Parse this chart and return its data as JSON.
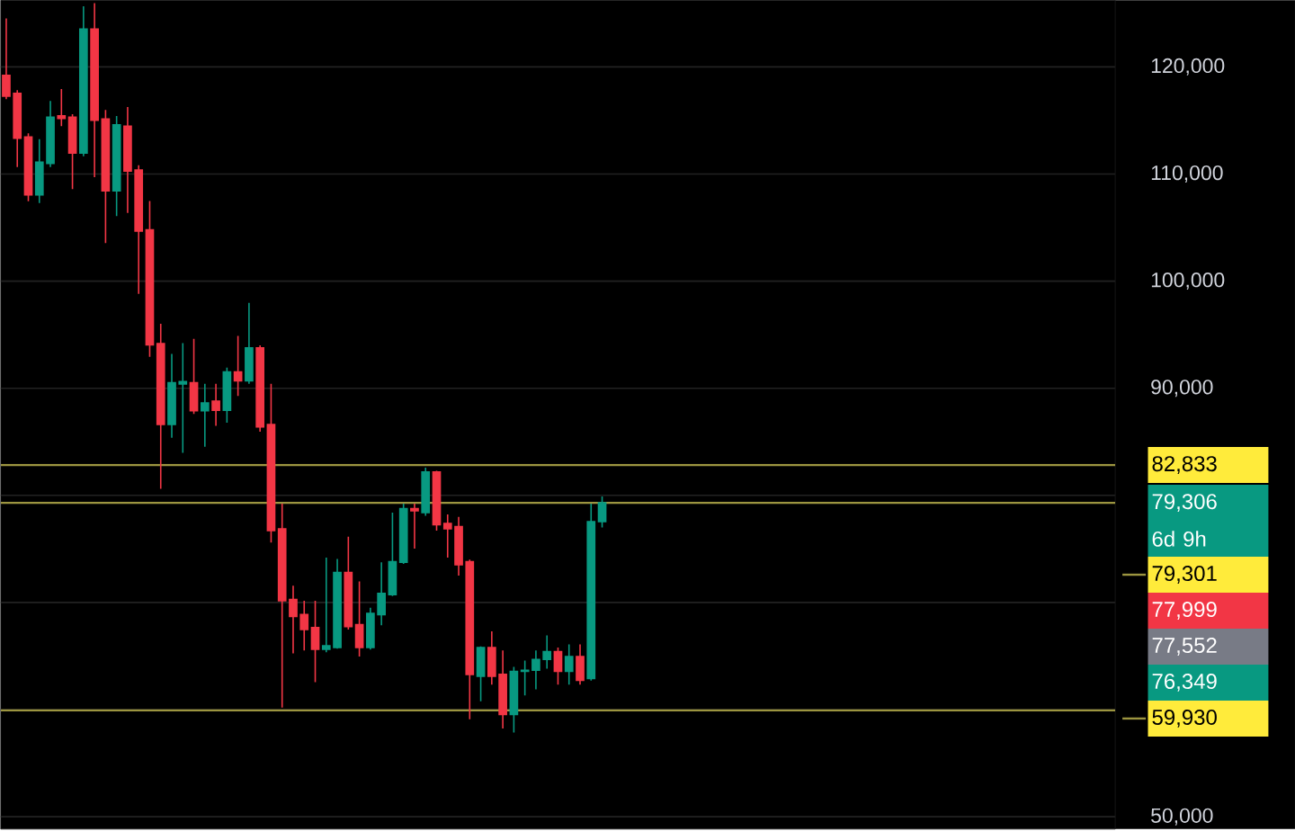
{
  "chart_data": {
    "type": "candlestick",
    "categories": [
      null,
      null,
      null,
      null,
      null,
      null,
      null,
      null,
      null,
      null,
      null,
      null,
      null,
      null,
      null,
      null,
      null,
      null,
      null,
      null,
      null,
      null,
      null,
      null,
      null,
      null,
      null,
      null,
      null,
      null,
      null,
      null,
      null,
      null,
      null,
      null,
      null,
      null,
      null,
      null,
      null,
      null,
      null,
      null,
      null,
      null,
      null,
      null,
      null,
      null,
      null,
      null,
      null,
      null,
      null,
      null,
      null,
      null,
      null,
      null,
      null,
      null,
      null,
      null,
      null,
      null,
      null,
      null,
      null,
      null,
      null,
      null,
      null,
      null,
      null,
      null,
      null,
      null,
      null,
      null,
      null,
      null,
      null,
      null,
      null,
      null,
      null,
      null,
      null,
      null,
      null,
      null,
      null,
      null,
      null,
      null,
      null,
      null,
      null,
      null,
      null
    ],
    "ohlc": [
      [
        119210,
        124531,
        116980,
        117265
      ],
      [
        117530,
        117819,
        110650,
        113340
      ],
      [
        113456,
        113800,
        107460,
        108040
      ],
      [
        108040,
        113240,
        107300,
        111107
      ],
      [
        110990,
        116810,
        110650,
        115300
      ],
      [
        115420,
        117930,
        114460,
        115190
      ],
      [
        115300,
        115590,
        108590,
        111950
      ],
      [
        111950,
        125650,
        111660,
        123520
      ],
      [
        123520,
        125950,
        109710,
        115020
      ],
      [
        115130,
        115970,
        103550,
        108420
      ],
      [
        108420,
        115420,
        106070,
        114580
      ],
      [
        114460,
        116260,
        106360,
        110270
      ],
      [
        110380,
        110820,
        98810,
        104680
      ],
      [
        104780,
        107470,
        92930,
        94040
      ],
      [
        94160,
        96010,
        80620,
        86610
      ],
      [
        86610,
        93200,
        85380,
        90520
      ],
      [
        90400,
        94220,
        83970,
        90630
      ],
      [
        90520,
        94610,
        87610,
        87900
      ],
      [
        87900,
        90420,
        84540,
        88620
      ],
      [
        88790,
        90420,
        86500,
        87950
      ],
      [
        87950,
        91930,
        86780,
        91520
      ],
      [
        91520,
        94880,
        89290,
        90690
      ],
      [
        90690,
        97970,
        90420,
        93770
      ],
      [
        93770,
        94000,
        85940,
        86390
      ],
      [
        86610,
        90420,
        75590,
        76710
      ],
      [
        76880,
        79230,
        60200,
        70170
      ],
      [
        70280,
        71560,
        65250,
        68700
      ],
      [
        68870,
        70160,
        65520,
        67480
      ],
      [
        67650,
        70160,
        62560,
        65630
      ],
      [
        65630,
        74190,
        65350,
        65970
      ],
      [
        65800,
        74070,
        65700,
        72800
      ],
      [
        72800,
        76150,
        67480,
        67760
      ],
      [
        67930,
        71960,
        64960,
        65800
      ],
      [
        65800,
        69520,
        65600,
        68990
      ],
      [
        68870,
        73750,
        67870,
        70840
      ],
      [
        70730,
        78390,
        70600,
        73800
      ],
      [
        73750,
        79230,
        73600,
        78770
      ],
      [
        78770,
        79230,
        75030,
        78550
      ],
      [
        78390,
        82580,
        78100,
        82190
      ],
      [
        82190,
        82300,
        76710,
        77260
      ],
      [
        77380,
        78220,
        74190,
        76880
      ],
      [
        77090,
        77990,
        72510,
        73520
      ],
      [
        73800,
        74000,
        59100,
        63290
      ],
      [
        63120,
        65900,
        60770,
        65800
      ],
      [
        65800,
        67310,
        62330,
        63120
      ],
      [
        63290,
        65520,
        58250,
        59540
      ],
      [
        59540,
        64000,
        57860,
        63570
      ],
      [
        63570,
        64570,
        61320,
        63680
      ],
      [
        63680,
        65520,
        61890,
        64680
      ],
      [
        64680,
        66920,
        63830,
        65410
      ],
      [
        65410,
        65800,
        62330,
        63570
      ],
      [
        63570,
        66080,
        62330,
        64960
      ],
      [
        64960,
        66080,
        62330,
        62730
      ],
      [
        62900,
        79230,
        62700,
        77550
      ],
      [
        77550,
        79900,
        77000,
        79306
      ],
      null,
      null,
      null,
      null,
      null,
      null,
      null,
      null,
      null,
      null,
      null,
      null,
      null,
      null,
      null,
      null,
      null,
      null,
      null,
      null,
      null,
      null,
      null,
      null,
      null,
      null,
      null,
      null,
      null,
      null,
      null,
      null,
      null,
      null,
      null,
      null,
      null,
      null,
      null,
      null,
      null,
      null,
      null,
      null,
      null,
      null
    ],
    "colors": [
      "#f23645",
      "#f23645",
      "#f23645",
      "#089981",
      "#089981",
      "#f23645",
      "#f23645",
      "#089981",
      "#f23645",
      "#f23645",
      "#089981",
      "#f23645",
      "#f23645",
      "#f23645",
      "#f23645",
      "#089981",
      "#089981",
      "#f23645",
      "#089981",
      "#f23645",
      "#089981",
      "#f23645",
      "#089981",
      "#f23645",
      "#f23645",
      "#f23645",
      "#f23645",
      "#f23645",
      "#f23645",
      "#089981",
      "#089981",
      "#f23645",
      "#f23645",
      "#089981",
      "#089981",
      "#089981",
      "#089981",
      "#f23645",
      "#089981",
      "#f23645",
      "#f23645",
      "#f23645",
      "#f23645",
      "#089981",
      "#f23645",
      "#f23645",
      "#089981",
      "#089981",
      "#089981",
      "#089981",
      "#f23645",
      "#089981",
      "#f23645",
      "#089981",
      "#089981",
      null,
      null,
      null,
      null,
      null,
      null,
      null,
      null,
      null,
      null,
      null,
      null,
      null,
      null,
      null,
      null,
      null,
      null,
      null,
      null,
      null,
      null,
      null,
      null,
      null,
      null,
      null,
      null,
      null,
      null,
      null,
      null,
      null,
      null,
      null,
      null,
      null,
      null,
      null,
      null,
      null,
      null,
      null,
      null,
      null,
      null
    ],
    "ylim": [
      48850,
      126210
    ],
    "yticks": [
      {
        "value": 50000,
        "label": "50,000"
      },
      {
        "value": 60000,
        "label": null
      },
      {
        "value": 70000,
        "label": null
      },
      {
        "value": 80000,
        "label": null
      },
      {
        "value": 90000,
        "label": "90,000"
      },
      {
        "value": 100000,
        "label": "100,000"
      },
      {
        "value": 110000,
        "label": "110,000"
      },
      {
        "value": 120000,
        "label": "120,000"
      }
    ],
    "grid": "y",
    "tick_labels": "y",
    "ref_lines": [
      {
        "axis": "y",
        "value": 82833,
        "label": "82,833",
        "color": "#9c9540"
      },
      {
        "axis": "y",
        "value": 79301,
        "label": "79,301",
        "color": "#9c9540"
      },
      {
        "axis": "y",
        "value": 59930,
        "label": "59,930",
        "color": "#9c9540"
      }
    ],
    "value_labels": [
      null,
      null,
      null,
      null,
      null,
      null,
      null,
      null,
      null,
      null,
      null,
      null,
      null,
      null,
      null,
      null,
      null,
      null,
      null,
      null,
      null,
      null,
      null,
      null,
      null,
      null,
      null,
      null,
      null,
      null,
      null,
      null,
      null,
      null,
      null,
      null,
      null,
      null,
      null,
      null,
      null,
      null,
      null,
      null,
      null,
      null,
      null,
      null,
      null,
      null,
      null,
      null,
      null,
      null,
      "79,306",
      null,
      null,
      null,
      null,
      null,
      null,
      null,
      null,
      null,
      null,
      null,
      null,
      null,
      null,
      null,
      null,
      null,
      null,
      null,
      null,
      null,
      null,
      null,
      null,
      null,
      null,
      null,
      null,
      null,
      null,
      null,
      null,
      null,
      null,
      null,
      null,
      null,
      null,
      null,
      null,
      null,
      null,
      null,
      null,
      null,
      null
    ],
    "annotations": [
      "6d 9h",
      "77,999",
      "77,552",
      "76,349"
    ]
  }
}
